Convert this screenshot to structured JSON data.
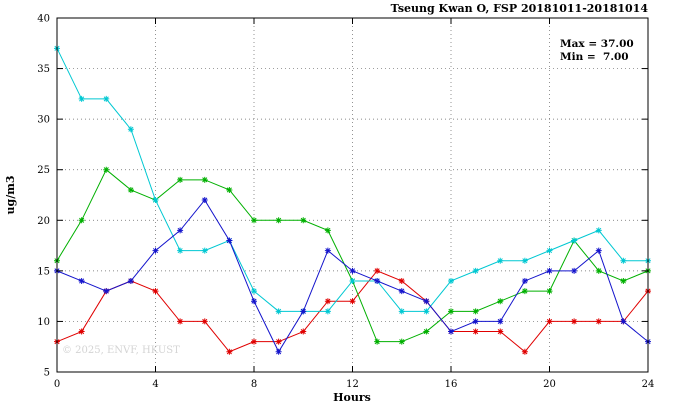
{
  "watermark": "© 2025, ENVF, HKUST",
  "chart_data": {
    "type": "line",
    "title": "Tseung Kwan O, FSP 20181011-20181014",
    "xlabel": "Hours",
    "ylabel": "ug/m3",
    "xlim": [
      0,
      24
    ],
    "ylim": [
      5,
      40
    ],
    "xticks": [
      0,
      4,
      8,
      12,
      16,
      20,
      24
    ],
    "yticks": [
      5,
      10,
      15,
      20,
      25,
      30,
      35,
      40
    ],
    "grid": true,
    "legend": "none",
    "annotations": [
      "Max = 37.00",
      "Min =  7.00"
    ],
    "marker": "asterisk",
    "x": [
      0,
      1,
      2,
      3,
      4,
      5,
      6,
      7,
      8,
      9,
      10,
      11,
      12,
      13,
      14,
      15,
      16,
      17,
      18,
      19,
      20,
      21,
      22,
      23,
      24
    ],
    "series": [
      {
        "name": "series-red",
        "color": "#e00000",
        "values": [
          8,
          9,
          13,
          14,
          13,
          10,
          10,
          7,
          8,
          8,
          9,
          12,
          12,
          15,
          14,
          12,
          9,
          9,
          9,
          7,
          10,
          10,
          10,
          10,
          13
        ]
      },
      {
        "name": "series-green",
        "color": "#00b000",
        "values": [
          16,
          20,
          25,
          23,
          22,
          24,
          24,
          23,
          20,
          20,
          20,
          19,
          14,
          8,
          8,
          9,
          11,
          11,
          12,
          13,
          13,
          18,
          15,
          14,
          15
        ]
      },
      {
        "name": "series-cyan",
        "color": "#00c8d2",
        "values": [
          37,
          32,
          32,
          29,
          22,
          17,
          17,
          18,
          13,
          11,
          11,
          11,
          14,
          14,
          11,
          11,
          14,
          15,
          16,
          16,
          17,
          18,
          19,
          16,
          16
        ]
      },
      {
        "name": "series-blue",
        "color": "#1414cc",
        "values": [
          15,
          14,
          13,
          14,
          17,
          19,
          22,
          18,
          12,
          7,
          11,
          17,
          15,
          14,
          13,
          12,
          9,
          10,
          10,
          14,
          15,
          15,
          17,
          10,
          8
        ]
      }
    ]
  }
}
